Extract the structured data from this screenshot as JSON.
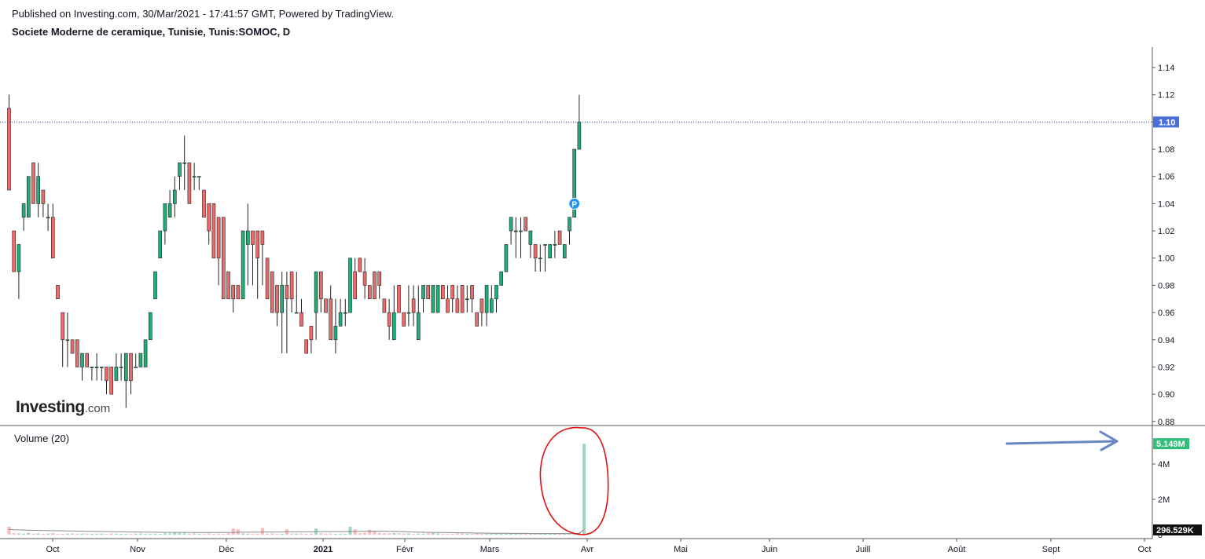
{
  "header": {
    "published": "Published on Investing.com, 30/Mar/2021 - 17:41:57 GMT, Powered by TradingView.",
    "title": "Societe Moderne de ceramique, Tunisie, Tunis:SOMOC, D"
  },
  "logo": {
    "main": "Investing",
    "suffix": ".com"
  },
  "volume_panel": {
    "title": "Volume (20)"
  },
  "colors": {
    "up": "#26a69a",
    "up_fill": "#1fae75",
    "down": "#ef5350",
    "down_fill": "#ec6a6a",
    "last_price_label": "#4a6fd6",
    "volume_label": "#2fbf7a",
    "annotation_circle": "#e01010",
    "annotation_arrow": "#6a85c5"
  },
  "chart_data": {
    "type": "candlestick",
    "symbol": "Tunis:SOMOC",
    "interval": "D",
    "price_axis": {
      "ticks": [
        "1.14",
        "1.12",
        "1.10",
        "1.08",
        "1.06",
        "1.04",
        "1.02",
        "1.00",
        "0.98",
        "0.96",
        "0.94",
        "0.92",
        "0.90",
        "0.88"
      ],
      "range": [
        0.877,
        1.155
      ]
    },
    "last_price": {
      "value": 1.1,
      "label": "1.10"
    },
    "volume_axis": {
      "ticks": [
        "4M",
        "2M",
        "0"
      ],
      "range": [
        0,
        5.6
      ],
      "unit": "M"
    },
    "volume_labels": {
      "last": "5.149M",
      "average": "296.529K"
    },
    "x_axis": {
      "labels": [
        "Oct",
        "Nov",
        "Déc",
        "2021",
        "Févr",
        "Mars",
        "Avr",
        "Mai",
        "Juin",
        "Juill",
        "Août",
        "Sept",
        "Oct"
      ],
      "bold": [
        "2021"
      ]
    },
    "marker": {
      "label": "P",
      "price": 1.04
    },
    "candles": [
      {
        "o": 1.11,
        "h": 1.12,
        "l": 1.05,
        "c": 1.05
      },
      {
        "o": 1.02,
        "h": 1.02,
        "l": 0.99,
        "c": 0.99
      },
      {
        "o": 0.99,
        "h": 1.01,
        "l": 0.97,
        "c": 1.01
      },
      {
        "o": 1.03,
        "h": 1.04,
        "l": 1.02,
        "c": 1.04
      },
      {
        "o": 1.03,
        "h": 1.06,
        "l": 1.03,
        "c": 1.06
      },
      {
        "o": 1.07,
        "h": 1.07,
        "l": 1.04,
        "c": 1.04
      },
      {
        "o": 1.04,
        "h": 1.07,
        "l": 1.03,
        "c": 1.06
      },
      {
        "o": 1.05,
        "h": 1.05,
        "l": 1.03,
        "c": 1.04
      },
      {
        "o": 1.03,
        "h": 1.04,
        "l": 1.02,
        "c": 1.03
      },
      {
        "o": 1.03,
        "h": 1.04,
        "l": 1.0,
        "c": 1.0
      },
      {
        "o": 0.98,
        "h": 0.98,
        "l": 0.97,
        "c": 0.97
      },
      {
        "o": 0.96,
        "h": 0.96,
        "l": 0.92,
        "c": 0.94
      },
      {
        "o": 0.94,
        "h": 0.96,
        "l": 0.92,
        "c": 0.94
      },
      {
        "o": 0.94,
        "h": 0.94,
        "l": 0.93,
        "c": 0.93
      },
      {
        "o": 0.94,
        "h": 0.94,
        "l": 0.92,
        "c": 0.92
      },
      {
        "o": 0.92,
        "h": 0.93,
        "l": 0.91,
        "c": 0.93
      },
      {
        "o": 0.93,
        "h": 0.93,
        "l": 0.92,
        "c": 0.92
      },
      {
        "o": 0.92,
        "h": 0.92,
        "l": 0.91,
        "c": 0.92
      },
      {
        "o": 0.92,
        "h": 0.93,
        "l": 0.91,
        "c": 0.92
      },
      {
        "o": 0.92,
        "h": 0.92,
        "l": 0.91,
        "c": 0.92
      },
      {
        "o": 0.92,
        "h": 0.92,
        "l": 0.9,
        "c": 0.91
      },
      {
        "o": 0.92,
        "h": 0.92,
        "l": 0.9,
        "c": 0.9
      },
      {
        "o": 0.91,
        "h": 0.93,
        "l": 0.91,
        "c": 0.92
      },
      {
        "o": 0.92,
        "h": 0.93,
        "l": 0.91,
        "c": 0.92
      },
      {
        "o": 0.91,
        "h": 0.93,
        "l": 0.89,
        "c": 0.93
      },
      {
        "o": 0.93,
        "h": 0.93,
        "l": 0.9,
        "c": 0.91
      },
      {
        "o": 0.92,
        "h": 0.93,
        "l": 0.92,
        "c": 0.92
      },
      {
        "o": 0.92,
        "h": 0.93,
        "l": 0.92,
        "c": 0.93
      },
      {
        "o": 0.92,
        "h": 0.94,
        "l": 0.92,
        "c": 0.94
      },
      {
        "o": 0.94,
        "h": 0.96,
        "l": 0.94,
        "c": 0.96
      },
      {
        "o": 0.97,
        "h": 0.99,
        "l": 0.97,
        "c": 0.99
      },
      {
        "o": 1.0,
        "h": 1.02,
        "l": 1.0,
        "c": 1.02
      },
      {
        "o": 1.02,
        "h": 1.04,
        "l": 1.01,
        "c": 1.04
      },
      {
        "o": 1.03,
        "h": 1.05,
        "l": 1.03,
        "c": 1.04
      },
      {
        "o": 1.04,
        "h": 1.06,
        "l": 1.03,
        "c": 1.05
      },
      {
        "o": 1.06,
        "h": 1.07,
        "l": 1.05,
        "c": 1.07
      },
      {
        "o": 1.07,
        "h": 1.09,
        "l": 1.05,
        "c": 1.07
      },
      {
        "o": 1.07,
        "h": 1.07,
        "l": 1.04,
        "c": 1.04
      },
      {
        "o": 1.06,
        "h": 1.07,
        "l": 1.05,
        "c": 1.06
      },
      {
        "o": 1.06,
        "h": 1.06,
        "l": 1.05,
        "c": 1.06
      },
      {
        "o": 1.05,
        "h": 1.05,
        "l": 1.03,
        "c": 1.03
      },
      {
        "o": 1.04,
        "h": 1.04,
        "l": 1.01,
        "c": 1.02
      },
      {
        "o": 1.04,
        "h": 1.04,
        "l": 1.0,
        "c": 1.0
      },
      {
        "o": 1.03,
        "h": 1.03,
        "l": 0.98,
        "c": 1.0
      },
      {
        "o": 1.03,
        "h": 1.03,
        "l": 0.97,
        "c": 0.97
      },
      {
        "o": 0.99,
        "h": 0.99,
        "l": 0.97,
        "c": 0.97
      },
      {
        "o": 0.98,
        "h": 0.98,
        "l": 0.96,
        "c": 0.97
      },
      {
        "o": 0.98,
        "h": 0.98,
        "l": 0.97,
        "c": 0.97
      },
      {
        "o": 0.97,
        "h": 1.02,
        "l": 0.97,
        "c": 1.02
      },
      {
        "o": 1.01,
        "h": 1.04,
        "l": 0.98,
        "c": 1.02
      },
      {
        "o": 1.02,
        "h": 1.02,
        "l": 0.98,
        "c": 1.01
      },
      {
        "o": 1.02,
        "h": 1.02,
        "l": 0.97,
        "c": 1.0
      },
      {
        "o": 1.02,
        "h": 1.02,
        "l": 0.98,
        "c": 1.01
      },
      {
        "o": 1.0,
        "h": 1.0,
        "l": 0.97,
        "c": 0.97
      },
      {
        "o": 0.99,
        "h": 0.99,
        "l": 0.96,
        "c": 0.96
      },
      {
        "o": 0.98,
        "h": 0.98,
        "l": 0.95,
        "c": 0.96
      },
      {
        "o": 0.96,
        "h": 0.99,
        "l": 0.93,
        "c": 0.98
      },
      {
        "o": 0.98,
        "h": 0.99,
        "l": 0.93,
        "c": 0.97
      },
      {
        "o": 0.99,
        "h": 0.99,
        "l": 0.96,
        "c": 0.97
      },
      {
        "o": 0.96,
        "h": 0.99,
        "l": 0.96,
        "c": 0.96
      },
      {
        "o": 0.96,
        "h": 0.97,
        "l": 0.95,
        "c": 0.95
      },
      {
        "o": 0.94,
        "h": 0.94,
        "l": 0.93,
        "c": 0.93
      },
      {
        "o": 0.95,
        "h": 0.95,
        "l": 0.93,
        "c": 0.94
      },
      {
        "o": 0.96,
        "h": 0.99,
        "l": 0.94,
        "c": 0.99
      },
      {
        "o": 0.99,
        "h": 0.99,
        "l": 0.96,
        "c": 0.97
      },
      {
        "o": 0.97,
        "h": 0.97,
        "l": 0.96,
        "c": 0.96
      },
      {
        "o": 0.97,
        "h": 0.98,
        "l": 0.94,
        "c": 0.94
      },
      {
        "o": 0.94,
        "h": 0.97,
        "l": 0.93,
        "c": 0.95
      },
      {
        "o": 0.95,
        "h": 0.97,
        "l": 0.95,
        "c": 0.96
      },
      {
        "o": 0.96,
        "h": 0.97,
        "l": 0.95,
        "c": 0.96
      },
      {
        "o": 0.96,
        "h": 1.0,
        "l": 0.96,
        "c": 1.0
      },
      {
        "o": 0.99,
        "h": 1.0,
        "l": 0.97,
        "c": 0.97
      },
      {
        "o": 1.0,
        "h": 1.0,
        "l": 0.99,
        "c": 0.99
      },
      {
        "o": 0.99,
        "h": 1.0,
        "l": 0.97,
        "c": 0.98
      },
      {
        "o": 0.98,
        "h": 0.98,
        "l": 0.97,
        "c": 0.97
      },
      {
        "o": 0.99,
        "h": 0.99,
        "l": 0.97,
        "c": 0.97
      },
      {
        "o": 0.99,
        "h": 0.99,
        "l": 0.97,
        "c": 0.98
      },
      {
        "o": 0.97,
        "h": 0.97,
        "l": 0.96,
        "c": 0.96
      },
      {
        "o": 0.96,
        "h": 0.97,
        "l": 0.94,
        "c": 0.95
      },
      {
        "o": 0.94,
        "h": 0.98,
        "l": 0.94,
        "c": 0.96
      },
      {
        "o": 0.98,
        "h": 0.98,
        "l": 0.96,
        "c": 0.96
      },
      {
        "o": 0.96,
        "h": 0.96,
        "l": 0.95,
        "c": 0.95
      },
      {
        "o": 0.96,
        "h": 0.98,
        "l": 0.95,
        "c": 0.96
      },
      {
        "o": 0.97,
        "h": 0.98,
        "l": 0.95,
        "c": 0.96
      },
      {
        "o": 0.94,
        "h": 0.98,
        "l": 0.94,
        "c": 0.96
      },
      {
        "o": 0.97,
        "h": 0.98,
        "l": 0.96,
        "c": 0.98
      },
      {
        "o": 0.98,
        "h": 0.98,
        "l": 0.97,
        "c": 0.97
      },
      {
        "o": 0.96,
        "h": 0.98,
        "l": 0.96,
        "c": 0.98
      },
      {
        "o": 0.96,
        "h": 0.98,
        "l": 0.96,
        "c": 0.98
      },
      {
        "o": 0.98,
        "h": 0.98,
        "l": 0.97,
        "c": 0.97
      },
      {
        "o": 0.97,
        "h": 0.98,
        "l": 0.96,
        "c": 0.96
      },
      {
        "o": 0.98,
        "h": 0.98,
        "l": 0.96,
        "c": 0.97
      },
      {
        "o": 0.97,
        "h": 0.98,
        "l": 0.96,
        "c": 0.96
      },
      {
        "o": 0.98,
        "h": 0.98,
        "l": 0.96,
        "c": 0.96
      },
      {
        "o": 0.97,
        "h": 0.98,
        "l": 0.96,
        "c": 0.97
      },
      {
        "o": 0.98,
        "h": 0.98,
        "l": 0.96,
        "c": 0.97
      },
      {
        "o": 0.96,
        "h": 0.96,
        "l": 0.95,
        "c": 0.95
      },
      {
        "o": 0.97,
        "h": 0.97,
        "l": 0.95,
        "c": 0.96
      },
      {
        "o": 0.96,
        "h": 0.98,
        "l": 0.95,
        "c": 0.98
      },
      {
        "o": 0.96,
        "h": 0.98,
        "l": 0.96,
        "c": 0.97
      },
      {
        "o": 0.97,
        "h": 0.98,
        "l": 0.96,
        "c": 0.98
      },
      {
        "o": 0.98,
        "h": 0.99,
        "l": 0.98,
        "c": 0.99
      },
      {
        "o": 0.99,
        "h": 1.01,
        "l": 0.99,
        "c": 1.01
      },
      {
        "o": 1.02,
        "h": 1.03,
        "l": 1.01,
        "c": 1.03
      },
      {
        "o": 1.02,
        "h": 1.03,
        "l": 1.0,
        "c": 1.02
      },
      {
        "o": 1.02,
        "h": 1.03,
        "l": 1.0,
        "c": 1.02
      },
      {
        "o": 1.03,
        "h": 1.03,
        "l": 1.02,
        "c": 1.02
      },
      {
        "o": 1.01,
        "h": 1.02,
        "l": 1.0,
        "c": 1.02
      },
      {
        "o": 1.01,
        "h": 1.01,
        "l": 0.99,
        "c": 1.0
      },
      {
        "o": 1.0,
        "h": 1.01,
        "l": 0.99,
        "c": 1.0
      },
      {
        "o": 1.01,
        "h": 1.01,
        "l": 0.99,
        "c": 1.01
      },
      {
        "o": 1.0,
        "h": 1.01,
        "l": 1.0,
        "c": 1.01
      },
      {
        "o": 1.01,
        "h": 1.02,
        "l": 1.0,
        "c": 1.01
      },
      {
        "o": 1.02,
        "h": 1.02,
        "l": 1.01,
        "c": 1.01
      },
      {
        "o": 1.0,
        "h": 1.01,
        "l": 1.0,
        "c": 1.01
      },
      {
        "o": 1.02,
        "h": 1.03,
        "l": 1.01,
        "c": 1.03
      },
      {
        "o": 1.03,
        "h": 1.08,
        "l": 1.03,
        "c": 1.08
      },
      {
        "o": 1.08,
        "h": 1.12,
        "l": 1.08,
        "c": 1.1
      }
    ],
    "volume": [
      0.45,
      0.08,
      0.07,
      0.06,
      0.1,
      0.06,
      0.07,
      0.05,
      0.06,
      0.09,
      0.05,
      0.05,
      0.06,
      0.07,
      0.05,
      0.06,
      0.06,
      0.05,
      0.05,
      0.06,
      0.05,
      0.07,
      0.06,
      0.05,
      0.06,
      0.05,
      0.06,
      0.07,
      0.05,
      0.05,
      0.06,
      0.05,
      0.08,
      0.07,
      0.1,
      0.09,
      0.08,
      0.06,
      0.07,
      0.05,
      0.06,
      0.07,
      0.05,
      0.06,
      0.05,
      0.08,
      0.35,
      0.3,
      0.07,
      0.06,
      0.05,
      0.05,
      0.38,
      0.06,
      0.07,
      0.06,
      0.05,
      0.3,
      0.07,
      0.06,
      0.07,
      0.05,
      0.06,
      0.35,
      0.08,
      0.06,
      0.07,
      0.05,
      0.06,
      0.05,
      0.45,
      0.3,
      0.08,
      0.1,
      0.28,
      0.2,
      0.1,
      0.08,
      0.08,
      0.09,
      0.08,
      0.06,
      0.07,
      0.05,
      0.06,
      0.06,
      0.08,
      0.1,
      0.07,
      0.06,
      0.06,
      0.05,
      0.08,
      0.06,
      0.05,
      0.06,
      0.07,
      0.05,
      0.06,
      0.05,
      0.06,
      0.05,
      0.05,
      0.06,
      0.05,
      0.06,
      0.05,
      0.05,
      0.06,
      0.05,
      0.06,
      0.05,
      0.07,
      0.06,
      0.05,
      0.06,
      0.07,
      0.1,
      5.149
    ],
    "volume_ma": [
      0.3,
      0.28,
      0.27,
      0.26,
      0.25,
      0.25,
      0.24,
      0.24,
      0.23,
      0.23,
      0.22,
      0.22,
      0.21,
      0.21,
      0.2,
      0.2,
      0.19,
      0.19,
      0.18,
      0.18,
      0.17,
      0.17,
      0.16,
      0.16,
      0.16,
      0.15,
      0.15,
      0.15,
      0.14,
      0.14,
      0.14,
      0.14,
      0.13,
      0.13,
      0.13,
      0.13,
      0.13,
      0.12,
      0.12,
      0.12,
      0.12,
      0.12,
      0.12,
      0.12,
      0.12,
      0.12,
      0.13,
      0.14,
      0.14,
      0.14,
      0.14,
      0.14,
      0.15,
      0.15,
      0.15,
      0.15,
      0.15,
      0.16,
      0.16,
      0.16,
      0.16,
      0.16,
      0.16,
      0.17,
      0.17,
      0.17,
      0.17,
      0.17,
      0.17,
      0.17,
      0.18,
      0.19,
      0.19,
      0.19,
      0.2,
      0.2,
      0.2,
      0.2,
      0.19,
      0.19,
      0.18,
      0.17,
      0.16,
      0.15,
      0.14,
      0.14,
      0.13,
      0.13,
      0.12,
      0.12,
      0.12,
      0.11,
      0.11,
      0.1,
      0.1,
      0.1,
      0.09,
      0.09,
      0.09,
      0.08,
      0.08,
      0.08,
      0.08,
      0.07,
      0.07,
      0.07,
      0.07,
      0.06,
      0.06,
      0.06,
      0.06,
      0.06,
      0.06,
      0.06,
      0.06,
      0.06,
      0.06,
      0.08,
      0.3
    ]
  }
}
